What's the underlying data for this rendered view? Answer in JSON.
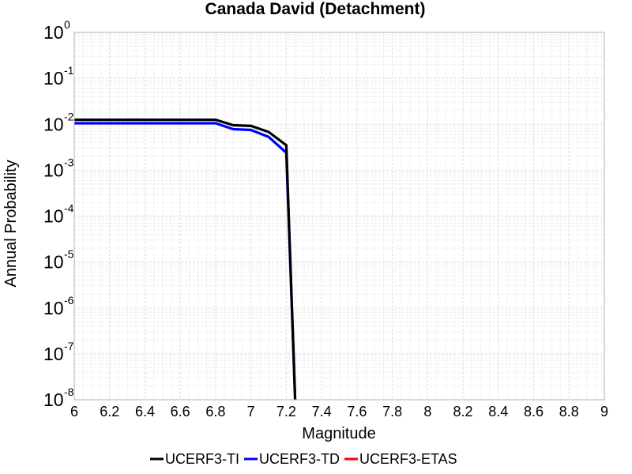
{
  "chart_data": {
    "type": "line",
    "title": "Canada David (Detachment)",
    "xlabel": "Magnitude",
    "ylabel": "Annual Probability",
    "xlim": [
      6,
      9
    ],
    "ylim": [
      1e-08,
      1
    ],
    "yscale": "log",
    "grid": true,
    "legend_position": "bottom",
    "x_ticks": [
      "6",
      "6.2",
      "6.4",
      "6.6",
      "6.8",
      "7",
      "7.2",
      "7.4",
      "7.6",
      "7.8",
      "8",
      "8.2",
      "8.4",
      "8.6",
      "8.8",
      "9"
    ],
    "y_ticks": [
      {
        "base": "10",
        "exp": "0"
      },
      {
        "base": "10",
        "exp": "-1"
      },
      {
        "base": "10",
        "exp": "-2"
      },
      {
        "base": "10",
        "exp": "-3"
      },
      {
        "base": "10",
        "exp": "-4"
      },
      {
        "base": "10",
        "exp": "-5"
      },
      {
        "base": "10",
        "exp": "-6"
      },
      {
        "base": "10",
        "exp": "-7"
      },
      {
        "base": "10",
        "exp": "-8"
      }
    ],
    "series": [
      {
        "name": "UCERF3-TI",
        "color": "#000000",
        "x": [
          6.0,
          6.1,
          6.2,
          6.3,
          6.4,
          6.5,
          6.6,
          6.7,
          6.8,
          6.9,
          7.0,
          7.1,
          7.2,
          7.25
        ],
        "y": [
          0.0125,
          0.0125,
          0.0125,
          0.0125,
          0.0125,
          0.0125,
          0.0125,
          0.0125,
          0.0125,
          0.0095,
          0.0092,
          0.0068,
          0.0035,
          1e-08
        ]
      },
      {
        "name": "UCERF3-TD",
        "color": "#0000ff",
        "x": [
          6.0,
          6.1,
          6.2,
          6.3,
          6.4,
          6.5,
          6.6,
          6.7,
          6.8,
          6.9,
          7.0,
          7.1,
          7.2,
          7.25
        ],
        "y": [
          0.0105,
          0.0105,
          0.0105,
          0.0105,
          0.0105,
          0.0105,
          0.0105,
          0.0105,
          0.0105,
          0.0078,
          0.0075,
          0.0053,
          0.0024,
          1e-08
        ]
      },
      {
        "name": "UCERF3-ETAS",
        "color": "#ff0000",
        "x": [],
        "y": []
      }
    ]
  }
}
